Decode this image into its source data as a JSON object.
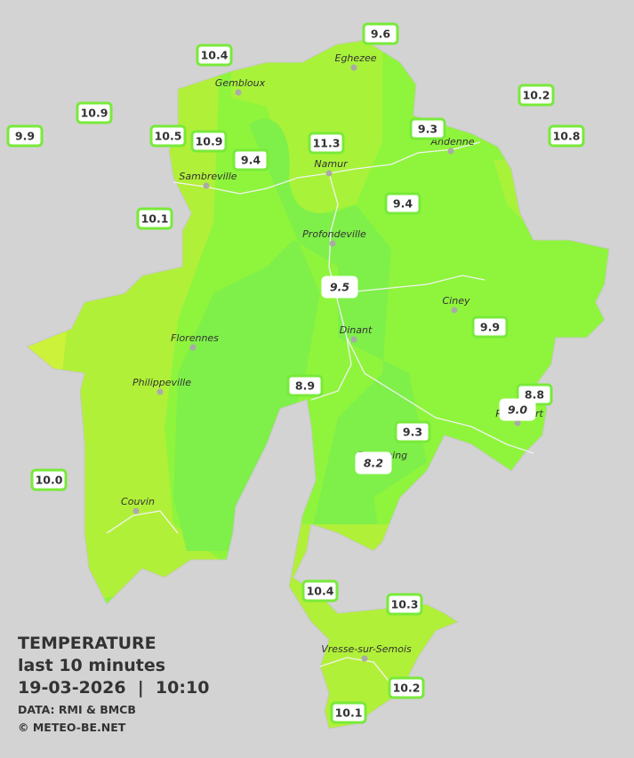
{
  "legend": {
    "title": "TEMPERATURE",
    "subtitle": "last 10 minutes",
    "timestamp": "19-03-2026  |  10:10",
    "source": "DATA: RMI & BMCB",
    "credit": "© METEO-BE.NET"
  },
  "towns": [
    "Eghezee",
    "Gembloux",
    "Andenne",
    "Namur",
    "Sambreville",
    "Profondeville",
    "Ciney",
    "Dinant",
    "Florennes",
    "Philippeville",
    "Rochefort",
    "Beauraing",
    "Couvin",
    "Vresse-sur-Semois"
  ],
  "stations": [
    "9.6",
    "10.4",
    "10.2",
    "10.9",
    "9.3",
    "9.9",
    "10.5",
    "10.9",
    "11.3",
    "10.8",
    "9.4",
    "9.4",
    "10.1",
    "9.5",
    "9.9",
    "8.9",
    "8.8",
    "9.0",
    "9.3",
    "8.2",
    "10.0",
    "10.4",
    "10.3",
    "10.2",
    "10.1"
  ]
}
